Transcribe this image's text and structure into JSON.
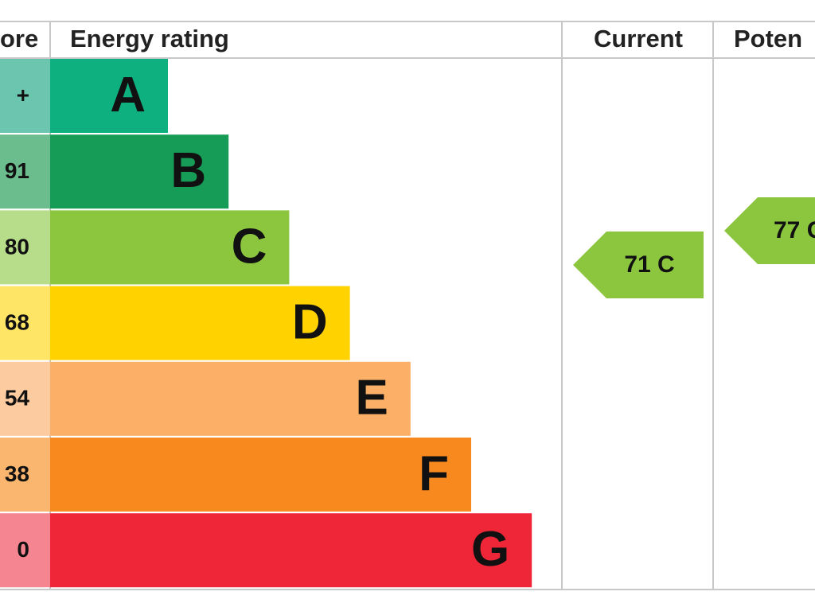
{
  "header": {
    "score": "ore",
    "rating": "Energy rating",
    "current": "Current",
    "potential": "Poten"
  },
  "bands": [
    {
      "score": "+",
      "letter": "A"
    },
    {
      "score": "91",
      "letter": "B"
    },
    {
      "score": "80",
      "letter": "C"
    },
    {
      "score": "68",
      "letter": "D"
    },
    {
      "score": "54",
      "letter": "E"
    },
    {
      "score": "38",
      "letter": "F"
    },
    {
      "score": "0",
      "letter": "G"
    }
  ],
  "current": "71 C",
  "potential": "77 C"
}
